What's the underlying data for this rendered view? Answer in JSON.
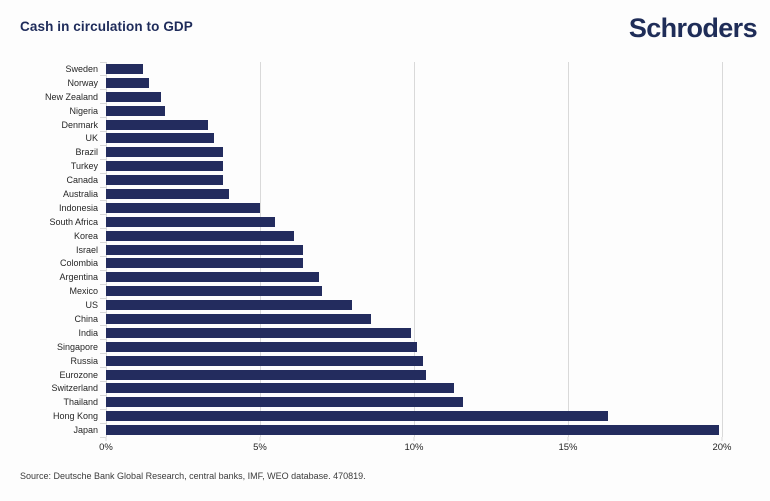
{
  "header": {
    "title": "Cash in circulation to GDP",
    "logo_text": "Schroders"
  },
  "colors": {
    "bar": "#232c5e",
    "navy_text": "#1e2b5a",
    "gridline": "#d9d9d9",
    "axis_text": "#262626",
    "source_text": "#3b3b3b"
  },
  "chart_data": {
    "type": "bar",
    "orientation": "horizontal",
    "title": "Cash in circulation to GDP",
    "categories": [
      "Sweden",
      "Norway",
      "New Zealand",
      "Nigeria",
      "Denmark",
      "UK",
      "Brazil",
      "Turkey",
      "Canada",
      "Australia",
      "Indonesia",
      "South Africa",
      "Korea",
      "Israel",
      "Colombia",
      "Argentina",
      "Mexico",
      "US",
      "China",
      "India",
      "Singapore",
      "Russia",
      "Eurozone",
      "Switzerland",
      "Thailand",
      "Hong Kong",
      "Japan"
    ],
    "values": [
      1.2,
      1.4,
      1.8,
      1.9,
      3.3,
      3.5,
      3.8,
      3.8,
      3.8,
      4.0,
      5.0,
      5.5,
      6.1,
      6.4,
      6.4,
      6.9,
      7.0,
      8.0,
      8.6,
      9.9,
      10.1,
      10.3,
      10.4,
      11.3,
      11.6,
      16.3,
      19.9
    ],
    "x_ticks": [
      "0%",
      "5%",
      "10%",
      "15%",
      "20%"
    ],
    "xlim": [
      0,
      20
    ],
    "grid": true,
    "legend": false,
    "xlabel": "",
    "ylabel": ""
  },
  "source_note": "Source: Deutsche Bank Global Research, central banks, IMF, WEO database. 470819."
}
